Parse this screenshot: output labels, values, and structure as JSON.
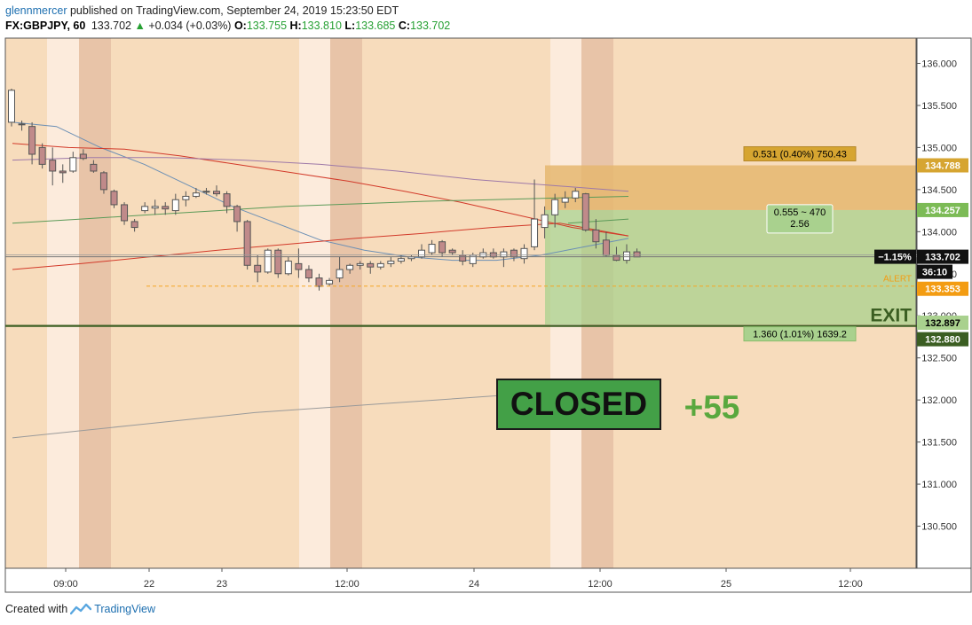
{
  "header": {
    "username": "glennmercer",
    "published_text": "published on TradingView.com, September 24, 2019 15:23:50 EDT",
    "symbol": "FX:GBPJPY, 60",
    "last": "133.702",
    "change_arrow": "▲",
    "change": "+0.034 (+0.03%)",
    "o_label": "O:",
    "o_value": "133.755",
    "h_label": "H:",
    "h_value": "133.810",
    "l_label": "L:",
    "l_value": "133.685",
    "c_label": "C:",
    "c_value": "133.702"
  },
  "footer": {
    "created_with": "Created with",
    "brand": "TradingView"
  },
  "colors": {
    "background": "#f7dcbc",
    "session_light": "#fcebdc",
    "session_dark": "#e8c4a8",
    "candle_up": "#ffffff",
    "candle_down": "#c08a8a",
    "candle_border": "#555555",
    "ma_blue": "#6b8fb5",
    "ma_red": "#d23a2a",
    "ma_purple": "#9e79a8",
    "ma_green": "#5b9a58",
    "ma_gray": "#9a9a9a",
    "target_zone": "#e5b770",
    "stop_zone": "#a9d18e",
    "exit_line": "#3b5e22",
    "closed_box": "#43a047",
    "profit_text": "#5aa83e"
  },
  "chart_data": {
    "type": "candlestick",
    "symbol": "FX:GBPJPY",
    "interval": "60",
    "ylim": [
      130.0,
      136.3
    ],
    "y_ticks": [
      "136.000",
      "135.500",
      "135.000",
      "134.500",
      "134.000",
      "133.500",
      "133.000",
      "132.500",
      "132.000",
      "131.500",
      "131.000",
      "130.500"
    ],
    "x_ticks": [
      "09:00",
      "22",
      "23",
      "12:00",
      "24",
      "12:00",
      "25",
      "12:00"
    ],
    "candles": [
      {
        "o": 135.3,
        "h": 135.7,
        "l": 135.25,
        "c": 135.68
      },
      {
        "o": 135.28,
        "h": 135.32,
        "l": 135.2,
        "c": 135.27
      },
      {
        "o": 135.25,
        "h": 135.3,
        "l": 134.8,
        "c": 134.92
      },
      {
        "o": 135.0,
        "h": 135.05,
        "l": 134.75,
        "c": 134.8
      },
      {
        "o": 134.85,
        "h": 135.0,
        "l": 134.55,
        "c": 134.72
      },
      {
        "o": 134.72,
        "h": 134.8,
        "l": 134.58,
        "c": 134.7
      },
      {
        "o": 134.72,
        "h": 134.95,
        "l": 134.7,
        "c": 134.88
      },
      {
        "o": 134.92,
        "h": 134.98,
        "l": 134.85,
        "c": 134.87
      },
      {
        "o": 134.8,
        "h": 134.85,
        "l": 134.7,
        "c": 134.72
      },
      {
        "o": 134.7,
        "h": 134.72,
        "l": 134.45,
        "c": 134.5
      },
      {
        "o": 134.48,
        "h": 134.5,
        "l": 134.28,
        "c": 134.32
      },
      {
        "o": 134.32,
        "h": 134.35,
        "l": 134.08,
        "c": 134.13
      },
      {
        "o": 134.12,
        "h": 134.15,
        "l": 134.0,
        "c": 134.05
      },
      {
        "o": 134.25,
        "h": 134.35,
        "l": 134.22,
        "c": 134.3
      },
      {
        "o": 134.28,
        "h": 134.38,
        "l": 134.2,
        "c": 134.3
      },
      {
        "o": 134.3,
        "h": 134.35,
        "l": 134.2,
        "c": 134.27
      },
      {
        "o": 134.25,
        "h": 134.45,
        "l": 134.2,
        "c": 134.38
      },
      {
        "o": 134.38,
        "h": 134.48,
        "l": 134.3,
        "c": 134.42
      },
      {
        "o": 134.42,
        "h": 134.52,
        "l": 134.4,
        "c": 134.46
      },
      {
        "o": 134.47,
        "h": 134.52,
        "l": 134.44,
        "c": 134.48
      },
      {
        "o": 134.48,
        "h": 134.55,
        "l": 134.42,
        "c": 134.45
      },
      {
        "o": 134.45,
        "h": 134.48,
        "l": 134.22,
        "c": 134.3
      },
      {
        "o": 134.3,
        "h": 134.32,
        "l": 134.0,
        "c": 134.12
      },
      {
        "o": 134.12,
        "h": 134.14,
        "l": 133.55,
        "c": 133.6
      },
      {
        "o": 133.6,
        "h": 133.72,
        "l": 133.4,
        "c": 133.52
      },
      {
        "o": 133.52,
        "h": 133.8,
        "l": 133.5,
        "c": 133.78
      },
      {
        "o": 133.78,
        "h": 133.8,
        "l": 133.45,
        "c": 133.5
      },
      {
        "o": 133.5,
        "h": 133.7,
        "l": 133.48,
        "c": 133.65
      },
      {
        "o": 133.62,
        "h": 133.8,
        "l": 133.45,
        "c": 133.55
      },
      {
        "o": 133.55,
        "h": 133.6,
        "l": 133.4,
        "c": 133.45
      },
      {
        "o": 133.45,
        "h": 133.5,
        "l": 133.3,
        "c": 133.35
      },
      {
        "o": 133.38,
        "h": 133.45,
        "l": 133.35,
        "c": 133.42
      },
      {
        "o": 133.45,
        "h": 133.7,
        "l": 133.4,
        "c": 133.55
      },
      {
        "o": 133.55,
        "h": 133.62,
        "l": 133.5,
        "c": 133.6
      },
      {
        "o": 133.6,
        "h": 133.65,
        "l": 133.55,
        "c": 133.62
      },
      {
        "o": 133.62,
        "h": 133.65,
        "l": 133.5,
        "c": 133.58
      },
      {
        "o": 133.58,
        "h": 133.65,
        "l": 133.55,
        "c": 133.62
      },
      {
        "o": 133.62,
        "h": 133.7,
        "l": 133.58,
        "c": 133.65
      },
      {
        "o": 133.65,
        "h": 133.72,
        "l": 133.62,
        "c": 133.68
      },
      {
        "o": 133.68,
        "h": 133.72,
        "l": 133.65,
        "c": 133.7
      },
      {
        "o": 133.7,
        "h": 133.85,
        "l": 133.68,
        "c": 133.78
      },
      {
        "o": 133.75,
        "h": 133.9,
        "l": 133.72,
        "c": 133.85
      },
      {
        "o": 133.88,
        "h": 133.9,
        "l": 133.7,
        "c": 133.75
      },
      {
        "o": 133.78,
        "h": 133.8,
        "l": 133.72,
        "c": 133.75
      },
      {
        "o": 133.72,
        "h": 133.78,
        "l": 133.6,
        "c": 133.65
      },
      {
        "o": 133.62,
        "h": 133.75,
        "l": 133.58,
        "c": 133.72
      },
      {
        "o": 133.7,
        "h": 133.8,
        "l": 133.68,
        "c": 133.75
      },
      {
        "o": 133.75,
        "h": 133.8,
        "l": 133.68,
        "c": 133.7
      },
      {
        "o": 133.7,
        "h": 133.8,
        "l": 133.58,
        "c": 133.76
      },
      {
        "o": 133.78,
        "h": 133.8,
        "l": 133.65,
        "c": 133.7
      },
      {
        "o": 133.68,
        "h": 133.85,
        "l": 133.62,
        "c": 133.8
      },
      {
        "o": 133.82,
        "h": 134.62,
        "l": 133.78,
        "c": 134.15
      },
      {
        "o": 134.05,
        "h": 134.3,
        "l": 133.92,
        "c": 134.2
      },
      {
        "o": 134.2,
        "h": 134.45,
        "l": 134.05,
        "c": 134.38
      },
      {
        "o": 134.35,
        "h": 134.48,
        "l": 134.28,
        "c": 134.4
      },
      {
        "o": 134.4,
        "h": 134.52,
        "l": 134.35,
        "c": 134.48
      },
      {
        "o": 134.45,
        "h": 134.46,
        "l": 134.0,
        "c": 134.02
      },
      {
        "o": 134.02,
        "h": 134.15,
        "l": 133.8,
        "c": 133.88
      },
      {
        "o": 133.9,
        "h": 134.0,
        "l": 133.7,
        "c": 133.72
      },
      {
        "o": 133.72,
        "h": 133.82,
        "l": 133.65,
        "c": 133.66
      },
      {
        "o": 133.66,
        "h": 133.85,
        "l": 133.62,
        "c": 133.76
      },
      {
        "o": 133.76,
        "h": 133.8,
        "l": 133.7,
        "c": 133.7
      }
    ],
    "moving_averages": [
      {
        "color": "#6b8fb5",
        "values": [
          135.3,
          135.25,
          135.0,
          134.8,
          134.55,
          134.3,
          134.1,
          133.9,
          133.78,
          133.7,
          133.66,
          133.66,
          133.72,
          133.82,
          133.92
        ]
      },
      {
        "color": "#d23a2a",
        "values": [
          135.05,
          135.0,
          134.98,
          134.9,
          134.8,
          134.7,
          134.6,
          134.48,
          134.35,
          134.2,
          134.05,
          133.95
        ]
      },
      {
        "color": "#9e79a8",
        "values": [
          134.85,
          134.88,
          134.88,
          134.85,
          134.8,
          134.72,
          134.62,
          134.55,
          134.48
        ]
      },
      {
        "color": "#5b9a58",
        "values": [
          134.1,
          134.15,
          134.2,
          134.25,
          134.3,
          134.33,
          134.36,
          134.38,
          134.4,
          134.42
        ]
      },
      {
        "color": "#d23a2a",
        "values": [
          133.55,
          133.62,
          133.7,
          133.78,
          133.85,
          133.92,
          133.98,
          134.05,
          134.1,
          133.95
        ]
      },
      {
        "color": "#5b9a58",
        "values": [
          134.1,
          134.15
        ]
      },
      {
        "color": "#9a9a9a",
        "values": [
          131.55,
          131.7,
          131.85,
          131.95,
          132.05
        ]
      }
    ],
    "last_price": "133.702",
    "change_pct": "−1.15%",
    "countdown": "36:10",
    "alert_price": "133.353",
    "alert_label": "ALERT",
    "position": {
      "entry": 134.257,
      "target": 134.788,
      "stop": 132.897,
      "exit": 132.88,
      "target_label": "0.531 (0.40%) 750.43",
      "middle_label_1": "0.555 ~ 470",
      "middle_label_2": "2.56",
      "stop_label": "1.360 (1.01%) 1639.2",
      "entry_price_label": "134.257",
      "target_price_label": "134.788",
      "stop_price_label": "132.897",
      "exit_price_label": "132.880"
    },
    "exit_text": "EXIT",
    "closed_text": "CLOSED",
    "profit_text": "+55"
  }
}
